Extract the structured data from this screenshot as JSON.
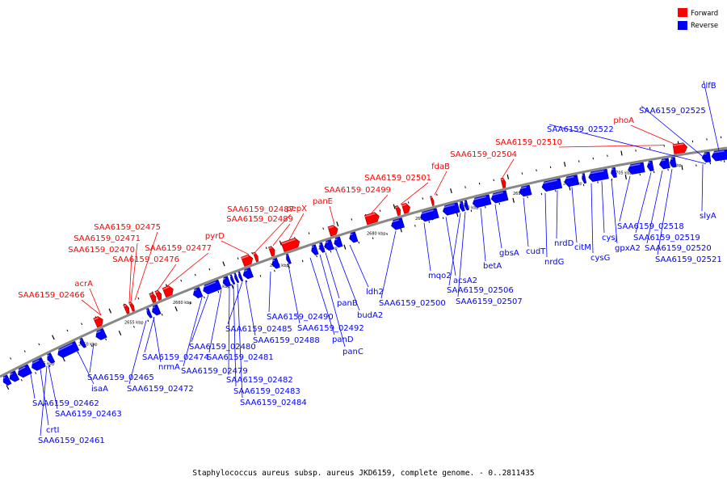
{
  "caption": "Staphylococcus aureus subsp. aureus JKD6159, complete genome. - 0..2811435",
  "legend": [
    {
      "label": "Forward",
      "color": "#ff0000"
    },
    {
      "label": "Reverse",
      "color": "#0000ff"
    }
  ],
  "colors": {
    "forward": "#ff0000",
    "reverse": "#0000ff",
    "backbone": "#888888"
  },
  "ticks": [
    "2645 kbp",
    "2650 kbp",
    "2655 kbp",
    "2660 kbp",
    "2665 kbp",
    "2670 kbp",
    "2675 kbp",
    "2680 kbp",
    "2685 kbp",
    "2690 kbp",
    "2695 kbp",
    "2700 kbp",
    "2705 kbp",
    "2710 kbp"
  ],
  "forward_labels": [
    "SAA6159_02466",
    "acrA",
    "SAA6159_02470",
    "SAA6159_02471",
    "SAA6159_02475",
    "SAA6159_02476",
    "SAA6159_02477",
    "pyrD",
    "SAA6159_02487",
    "SAA6159_02489",
    "pepX",
    "panE",
    "SAA6159_02499",
    "SAA6159_02501",
    "fdaB",
    "SAA6159_02504",
    "SAA6159_02510",
    "phoA"
  ],
  "reverse_labels": [
    "crtI",
    "SAA6159_02461",
    "SAA6159_02462",
    "SAA6159_02463",
    "isaA",
    "SAA6159_02465",
    "SAA6159_02472",
    "nrmA",
    "SAA6159_02474",
    "SAA6159_02479",
    "SAA6159_02480",
    "SAA6159_02481",
    "SAA6159_02482",
    "SAA6159_02483",
    "SAA6159_02484",
    "SAA6159_02485",
    "SAA6159_02488",
    "SAA6159_02490",
    "SAA6159_02492",
    "panD",
    "panC",
    "panB",
    "budA2",
    "ldh2",
    "SAA6159_02500",
    "mqo2",
    "acsA2",
    "SAA6159_02506",
    "SAA6159_02507",
    "betA",
    "gbsA",
    "cudT",
    "nrdG",
    "nrdD",
    "citM",
    "cysG",
    "cysJ",
    "gpxA2",
    "SAA6159_02518",
    "SAA6159_02519",
    "SAA6159_02520",
    "SAA6159_02521",
    "slyA",
    "SAA6159_02522",
    "SAA6159_02525",
    "clfB"
  ]
}
